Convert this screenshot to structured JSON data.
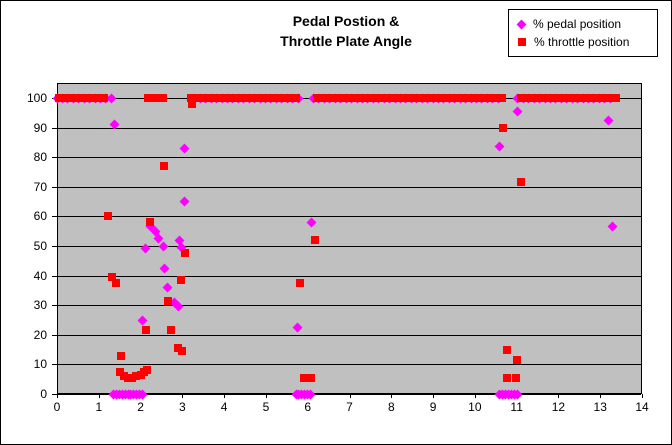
{
  "chart_data": {
    "type": "scatter",
    "title_line1": "Pedal Postion &",
    "title_line2": "Throttle Plate Angle",
    "plot_bg": "#C0C0C0",
    "gridlines": "horizontal-black",
    "legend_position": "top-right",
    "x_axis": {
      "min": 0,
      "max": 14,
      "tick_step": 1,
      "ticks": [
        0,
        1,
        2,
        3,
        4,
        5,
        6,
        7,
        8,
        9,
        10,
        11,
        12,
        13,
        14
      ]
    },
    "y_axis": {
      "min": 0,
      "max": 105,
      "tick_step": 10,
      "ticks": [
        0,
        10,
        20,
        30,
        40,
        50,
        60,
        70,
        80,
        90,
        100
      ]
    },
    "series": [
      {
        "name": "% pedal position",
        "marker": "diamond",
        "color": "#FF00FF",
        "points": [
          [
            1.38,
            91
          ],
          [
            2.05,
            25
          ],
          [
            2.12,
            49
          ],
          [
            2.24,
            56.5
          ],
          [
            2.36,
            55
          ],
          [
            2.43,
            52.5
          ],
          [
            2.54,
            50
          ],
          [
            2.58,
            42.5
          ],
          [
            2.64,
            36
          ],
          [
            2.8,
            31
          ],
          [
            2.9,
            29.5
          ],
          [
            2.92,
            52
          ],
          [
            2.99,
            49.5
          ],
          [
            3.05,
            65
          ],
          [
            3.06,
            83
          ],
          [
            5.75,
            22.5
          ],
          [
            6.1,
            58
          ],
          [
            10.6,
            83.5
          ],
          [
            11.03,
            95.5
          ],
          [
            13.2,
            92.5
          ],
          [
            13.3,
            56.5
          ]
        ],
        "runs": [
          {
            "y": 100,
            "from": 0,
            "to": 1.33,
            "step": 0.13
          },
          {
            "y": 100,
            "from": 3.3,
            "to": 5.82,
            "step": 0.13
          },
          {
            "y": 100,
            "from": 6.14,
            "to": 10.65,
            "step": 0.13
          },
          {
            "y": 100,
            "from": 11.03,
            "to": 13.35,
            "step": 0.13
          },
          {
            "y": 0,
            "from": 1.35,
            "to": 2.1,
            "step": 0.07
          },
          {
            "y": 0,
            "from": 5.72,
            "to": 6.12,
            "step": 0.07
          },
          {
            "y": 0,
            "from": 10.6,
            "to": 11.02,
            "step": 0.07
          }
        ]
      },
      {
        "name": "% throttle position",
        "marker": "square",
        "color": "#FF0000",
        "points": [
          [
            1.21,
            60
          ],
          [
            1.31,
            39.5
          ],
          [
            1.4,
            37.5
          ],
          [
            1.54,
            13
          ],
          [
            1.5,
            7.5
          ],
          [
            1.6,
            6
          ],
          [
            1.7,
            5.5
          ],
          [
            1.8,
            5.5
          ],
          [
            1.9,
            6
          ],
          [
            2.0,
            6.5
          ],
          [
            2.08,
            7.5
          ],
          [
            2.15,
            8
          ],
          [
            2.14,
            21.5
          ],
          [
            2.22,
            58
          ],
          [
            2.55,
            77
          ],
          [
            2.65,
            31.5
          ],
          [
            2.72,
            21.5
          ],
          [
            2.89,
            15.5
          ],
          [
            2.98,
            14.5
          ],
          [
            2.97,
            38.5
          ],
          [
            3.06,
            47.5
          ],
          [
            3.22,
            98
          ],
          [
            5.81,
            37.5
          ],
          [
            6.17,
            52
          ],
          [
            5.9,
            5.5
          ],
          [
            6.07,
            5.5
          ],
          [
            10.67,
            90
          ],
          [
            11.1,
            71.5
          ],
          [
            10.78,
            15
          ],
          [
            11.0,
            11.5
          ],
          [
            10.78,
            5.5
          ],
          [
            10.98,
            5.5
          ]
        ],
        "runs": [
          {
            "y": 100,
            "from": 0.05,
            "to": 1.22,
            "step": 0.12
          },
          {
            "y": 100,
            "from": 2.17,
            "to": 2.6,
            "step": 0.12
          },
          {
            "y": 100,
            "from": 3.2,
            "to": 5.8,
            "step": 0.12
          },
          {
            "y": 100,
            "from": 6.22,
            "to": 10.67,
            "step": 0.12
          },
          {
            "y": 100,
            "from": 11.1,
            "to": 13.38,
            "step": 0.12
          }
        ]
      }
    ]
  }
}
